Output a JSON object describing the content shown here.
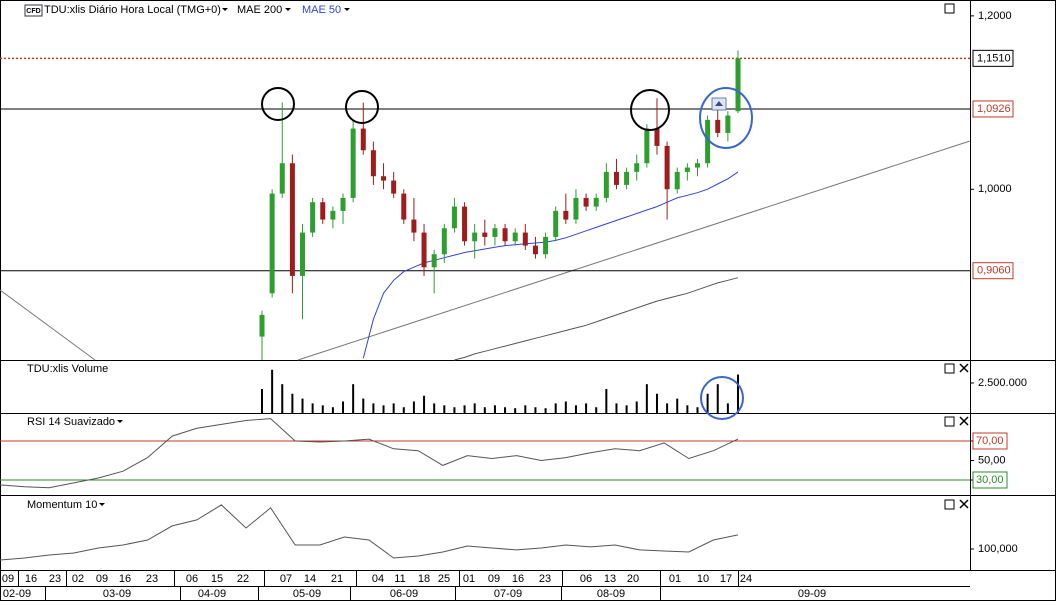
{
  "chart_data": [
    {
      "type": "candlestick",
      "badge": "CFD",
      "title": "TDU:xlis Diário Hora Local (TMG+0)",
      "open": [
        0.83,
        0.88,
        0.995,
        1.03,
        0.9,
        0.95,
        0.985,
        0.965,
        0.975,
        0.99,
        1.07,
        1.045,
        1.015,
        1.01,
        0.995,
        0.965,
        0.95,
        0.91,
        0.925,
        0.955,
        0.98,
        0.94,
        0.95,
        0.945,
        0.955,
        0.94,
        0.95,
        0.935,
        0.925,
        0.945,
        0.975,
        0.965,
        0.99,
        0.98,
        0.99,
        1.02,
        1.005,
        1.02,
        1.03,
        1.07,
        1.05,
        1.0,
        1.02,
        1.025,
        1.03,
        1.08,
        1.065,
        1.09
      ],
      "high": [
        0.86,
        1.0,
        1.1,
        1.04,
        0.96,
        0.99,
        0.99,
        0.98,
        0.995,
        1.08,
        1.1,
        1.055,
        1.03,
        1.02,
        1.0,
        0.99,
        0.96,
        0.93,
        0.96,
        0.99,
        0.985,
        0.96,
        0.965,
        0.96,
        0.96,
        0.955,
        0.96,
        0.945,
        0.95,
        0.98,
        0.995,
        1.0,
        0.995,
        0.995,
        1.03,
        1.035,
        1.025,
        1.04,
        1.075,
        1.105,
        1.055,
        1.025,
        1.03,
        1.035,
        1.085,
        1.1,
        1.09,
        1.16
      ],
      "low": [
        0.803,
        0.875,
        0.99,
        0.88,
        0.85,
        0.945,
        0.96,
        0.955,
        0.96,
        0.985,
        1.04,
        1.005,
        1.0,
        0.99,
        0.96,
        0.94,
        0.9,
        0.88,
        0.915,
        0.95,
        0.935,
        0.92,
        0.935,
        0.935,
        0.935,
        0.935,
        0.93,
        0.92,
        0.92,
        0.94,
        0.96,
        0.96,
        0.975,
        0.975,
        0.985,
        1.0,
        1.0,
        1.01,
        1.025,
        1.04,
        0.965,
        0.995,
        1.01,
        1.015,
        1.025,
        1.06,
        1.055,
        1.088
      ],
      "close": [
        0.855,
        0.995,
        1.03,
        0.9,
        0.95,
        0.985,
        0.965,
        0.975,
        0.99,
        1.07,
        1.045,
        1.015,
        1.01,
        0.995,
        0.965,
        0.95,
        0.91,
        0.925,
        0.955,
        0.98,
        0.94,
        0.95,
        0.945,
        0.955,
        0.94,
        0.95,
        0.935,
        0.925,
        0.945,
        0.975,
        0.965,
        0.99,
        0.98,
        0.99,
        1.02,
        1.005,
        1.02,
        1.03,
        1.07,
        1.05,
        1.0,
        1.02,
        1.025,
        1.03,
        1.08,
        1.065,
        1.085,
        1.151
      ],
      "up_color": "#2e9e2e",
      "down_color": "#9e1c1c",
      "series": [
        {
          "name": "MAE 200",
          "color": "#555555",
          "values": [
            null,
            null,
            null,
            null,
            null,
            null,
            null,
            null,
            null,
            null,
            null,
            null,
            null,
            null,
            null,
            null,
            null,
            null,
            null,
            0.803,
            0.806,
            0.81,
            0.813,
            0.816,
            0.819,
            0.822,
            0.825,
            0.828,
            0.831,
            0.834,
            0.837,
            0.84,
            0.843,
            0.847,
            0.851,
            0.855,
            0.859,
            0.863,
            0.867,
            0.871,
            0.874,
            0.877,
            0.88,
            0.884,
            0.888,
            0.892,
            0.895,
            0.898
          ]
        },
        {
          "name": "MAE 50",
          "color": "#3344cc",
          "values": [
            null,
            null,
            null,
            null,
            null,
            null,
            null,
            null,
            null,
            null,
            0.805,
            0.85,
            0.88,
            0.895,
            0.905,
            0.91,
            0.915,
            0.918,
            0.921,
            0.924,
            0.927,
            0.929,
            0.931,
            0.933,
            0.935,
            0.936,
            0.937,
            0.938,
            0.939,
            0.941,
            0.944,
            0.948,
            0.952,
            0.956,
            0.96,
            0.964,
            0.968,
            0.972,
            0.976,
            0.98,
            0.985,
            0.99,
            0.993,
            0.996,
            1.0,
            1.006,
            1.012,
            1.02
          ]
        }
      ],
      "ylim": [
        0.803,
        1.216
      ],
      "yticks": [
        {
          "value": 1.2,
          "label": "1,2000"
        },
        {
          "value": 1.0,
          "label": "1,0000"
        }
      ],
      "levels": [
        {
          "value": 1.151,
          "label": "1,1510",
          "line_color": "#c0392b",
          "label_color": "#000000",
          "dashed": true
        },
        {
          "value": 1.0926,
          "label": "1,0926",
          "line_color": "#000000",
          "label_color": "#c0392b",
          "dashed": false
        },
        {
          "value": 0.906,
          "label": "0,9060",
          "line_color": "#000000",
          "label_color": "#c0392b",
          "dashed": false
        }
      ]
    },
    {
      "type": "bar",
      "title": "TDU:xlis Volume",
      "color": "#000000",
      "values": [
        2000000,
        3600000,
        2400000,
        1600000,
        1200000,
        800000,
        640000,
        480000,
        960000,
        2400000,
        1200000,
        800000,
        640000,
        800000,
        480000,
        960000,
        1440000,
        800000,
        640000,
        480000,
        640000,
        800000,
        480000,
        640000,
        480000,
        400000,
        640000,
        480000,
        400000,
        800000,
        960000,
        640000,
        800000,
        480000,
        2000000,
        800000,
        640000,
        960000,
        2400000,
        1600000,
        800000,
        1200000,
        640000,
        480000,
        1600000,
        2400000,
        800000,
        3200000
      ],
      "ylim": [
        0,
        4330000
      ],
      "yticks": [
        {
          "value": 2500000,
          "label": "2.500.000"
        }
      ]
    },
    {
      "type": "line",
      "title": "RSI 14 Suavizado",
      "color": "#555555",
      "values": [
        25,
        23,
        22,
        27,
        32,
        39,
        53,
        75,
        83,
        87,
        91,
        93,
        70,
        69,
        70,
        72,
        62,
        60,
        45,
        55,
        52,
        55,
        50,
        53,
        58,
        62,
        60,
        68,
        52,
        60,
        72
      ],
      "ylim": [
        14.6,
        97.7
      ],
      "yticks": [
        {
          "value": 70,
          "label": "70,00",
          "color": "#c0392b"
        },
        {
          "value": 50,
          "label": "50,00"
        },
        {
          "value": 30,
          "label": "30,00",
          "color": "#2e8b2e"
        }
      ]
    },
    {
      "type": "line",
      "title": "Momentum 10",
      "color": "#555555",
      "values": [
        99.08,
        99.25,
        99.5,
        99.67,
        100.08,
        100.33,
        100.75,
        101.92,
        102.42,
        103.67,
        101.75,
        103.42,
        100.33,
        100.33,
        101.0,
        100.75,
        99.25,
        99.42,
        99.75,
        100.25,
        100.08,
        99.92,
        100.08,
        100.33,
        100.17,
        100.33,
        99.92,
        99.83,
        99.75,
        100.75,
        101.17
      ],
      "ylim": [
        98.25,
        104.33
      ],
      "yticks": [
        {
          "value": 100,
          "label": "100,000"
        }
      ]
    }
  ],
  "x_axis": {
    "days": [
      "09",
      "16",
      "23",
      "02",
      "09",
      "16",
      "23",
      "06",
      "15",
      "22",
      "07",
      "14",
      "21",
      "04",
      "11",
      "18",
      "25",
      "01",
      "09",
      "16",
      "23",
      "06",
      "13",
      "20",
      "01",
      "10",
      "17",
      "24"
    ],
    "months": [
      "02-09",
      "03-09",
      "04-09",
      "05-09",
      "06-09",
      "07-09",
      "08-09",
      "09-09"
    ]
  }
}
